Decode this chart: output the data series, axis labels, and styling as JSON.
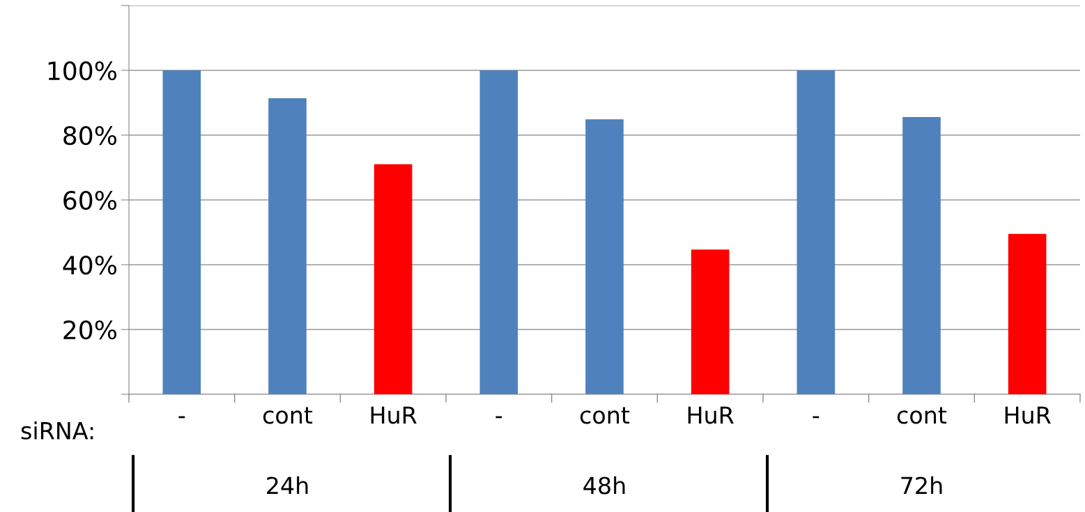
{
  "chart_data": {
    "type": "bar",
    "categories": [
      "-",
      "cont",
      "HuR",
      "-",
      "cont",
      "HuR",
      "-",
      "cont",
      "HuR"
    ],
    "values": [
      100,
      91.4,
      71.0,
      100,
      84.9,
      44.7,
      100,
      85.6,
      49.5
    ],
    "colors": [
      "#4f81bd",
      "#4f81bd",
      "#ff0000",
      "#4f81bd",
      "#4f81bd",
      "#ff0000",
      "#4f81bd",
      "#4f81bd",
      "#ff0000"
    ],
    "xlabel": "siRNA:",
    "annotations": [
      "24h",
      "48h",
      "72h"
    ],
    "ylim": [
      0,
      120
    ],
    "yticks": [
      {
        "value": 0,
        "label": null
      },
      {
        "value": 20,
        "label": "20%"
      },
      {
        "value": 40,
        "label": "40%"
      },
      {
        "value": 60,
        "label": "60%"
      },
      {
        "value": 80,
        "label": "80%"
      },
      {
        "value": 100,
        "label": "100%"
      },
      {
        "value": 120,
        "label": null
      }
    ],
    "grid": "y"
  }
}
